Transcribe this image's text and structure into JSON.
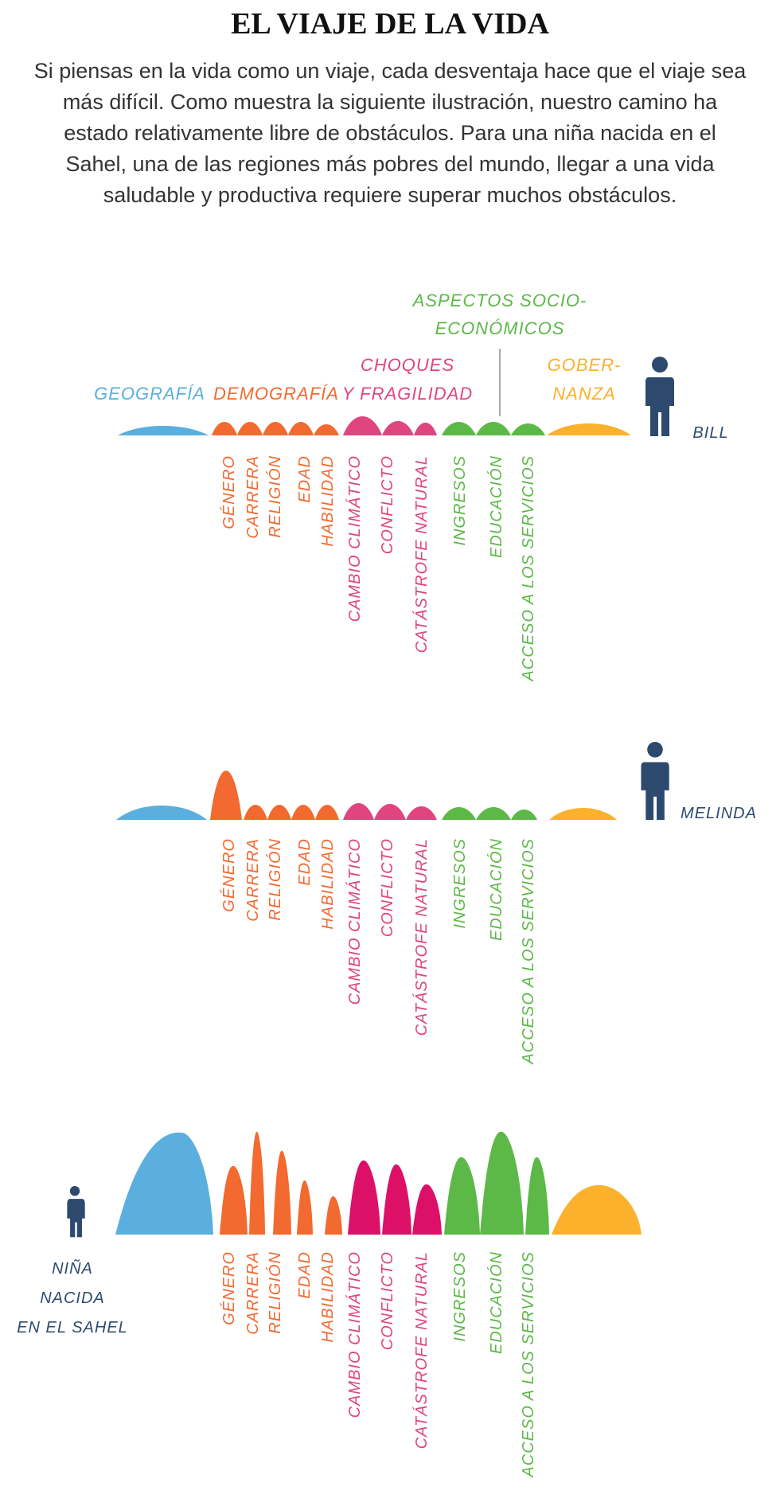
{
  "title": "EL VIAJE DE LA VIDA",
  "intro": "Si piensas en la vida como un viaje, cada desventaja hace que el viaje sea más difícil. Como muestra la siguiente ilustración, nuestro camino ha estado relativamente libre de obstáculos. Para una niña nacida en el Sahel, una de las regiones más pobres del mundo, llegar a una vida saludable  y productiva requiere superar muchos obstáculos.",
  "categories": {
    "geografia": {
      "label": [
        "GEOGRAFÍA"
      ],
      "color": "#5aafdf"
    },
    "demografia": {
      "label": [
        "DEMOGRAFÍA"
      ],
      "color": "#f26a30"
    },
    "choques": {
      "label": [
        "CHOQUES",
        "Y FRAGILIDAD"
      ],
      "color": "#e0457f"
    },
    "socio": {
      "label": [
        "ASPECTOS SOCIO-",
        "ECONÓMICOS"
      ],
      "color": "#5cb947"
    },
    "gobernanza": {
      "label": [
        "GOBER-",
        "NANZA"
      ],
      "color": "#fbb12c"
    }
  },
  "factors": [
    {
      "label": "GÉNERO",
      "color": "#f26a30"
    },
    {
      "label": "CARRERA",
      "color": "#f26a30"
    },
    {
      "label": "RELIGIÓN",
      "color": "#f26a30"
    },
    {
      "label": "EDAD",
      "color": "#f26a30"
    },
    {
      "label": "HABILIDAD",
      "color": "#f26a30"
    },
    {
      "label": "CAMBIO CLIMÁTICO",
      "color": "#e0457f"
    },
    {
      "label": "CONFLICTO",
      "color": "#e0457f"
    },
    {
      "label": "CATÁSTROFE NATURAL",
      "color": "#e0457f"
    },
    {
      "label": "INGRESOS",
      "color": "#5cb947"
    },
    {
      "label": "EDUCACIÓN",
      "color": "#5cb947"
    },
    {
      "label": "ACCESO A LOS SERVICIOS",
      "color": "#5cb947"
    }
  ],
  "people": [
    {
      "name": [
        "BILL"
      ]
    },
    {
      "name": [
        "MELINDA"
      ]
    },
    {
      "name": [
        "NIÑA",
        "NACIDA",
        "EN EL SAHEL"
      ]
    }
  ],
  "colors": {
    "person": "#2d4a6e",
    "sahel_shocks": "#dc1067"
  }
}
